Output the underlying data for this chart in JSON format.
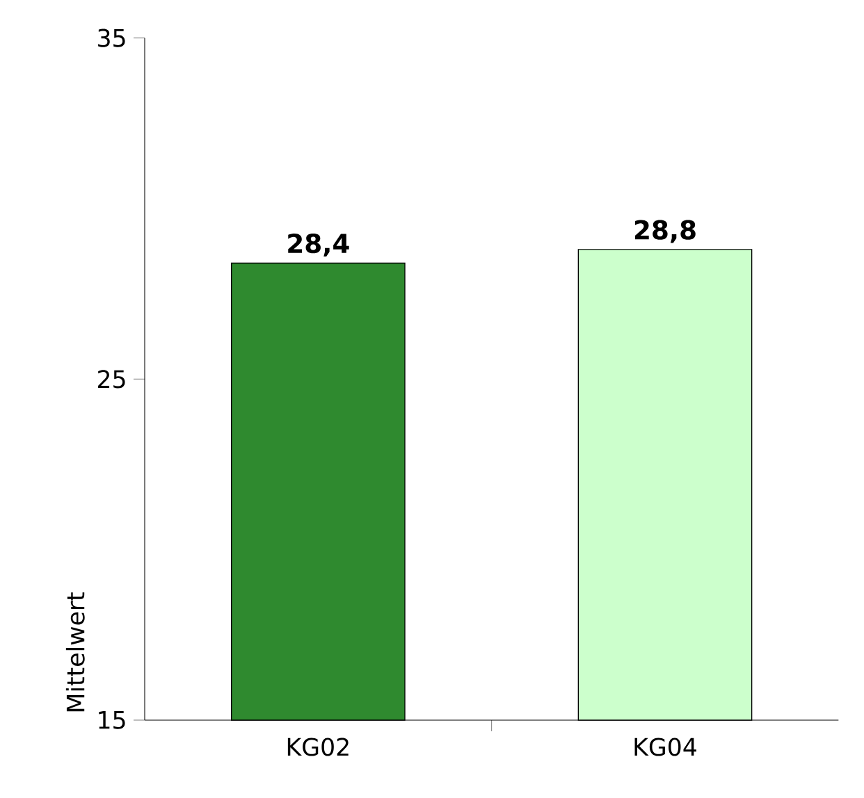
{
  "chart_data": {
    "type": "bar",
    "ylabel": "Mittelwert",
    "categories": [
      "KG02",
      "KG04"
    ],
    "values": [
      28.4,
      28.8
    ],
    "value_labels": [
      "28,4",
      "28,8"
    ],
    "colors": [
      "#2f8a2f",
      "#ccffcc"
    ],
    "ylim": [
      15,
      35
    ],
    "yticks": [
      15,
      25,
      35
    ]
  }
}
